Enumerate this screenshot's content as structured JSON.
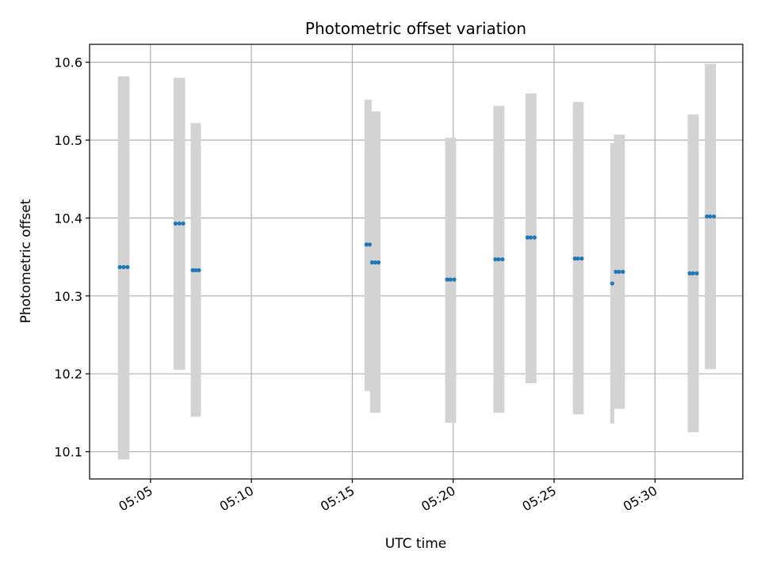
{
  "chart_data": {
    "type": "scatter",
    "title": "Photometric offset variation",
    "xlabel": "UTC time",
    "ylabel": "Photometric offset",
    "x_unit": "minutes after 05:00 UTC",
    "xlim": [
      1.98,
      34.35
    ],
    "ylim": [
      10.065,
      10.623
    ],
    "grid": true,
    "legend": "none",
    "x_ticks": [
      {
        "value": 5,
        "label": "05:05"
      },
      {
        "value": 10,
        "label": "05:10"
      },
      {
        "value": 15,
        "label": "05:15"
      },
      {
        "value": 20,
        "label": "05:20"
      },
      {
        "value": 25,
        "label": "05:25"
      },
      {
        "value": 30,
        "label": "05:30"
      }
    ],
    "y_ticks": [
      {
        "value": 10.1,
        "label": "10.1"
      },
      {
        "value": 10.2,
        "label": "10.2"
      },
      {
        "value": 10.3,
        "label": "10.3"
      },
      {
        "value": 10.4,
        "label": "10.4"
      },
      {
        "value": 10.5,
        "label": "10.5"
      },
      {
        "value": 10.6,
        "label": "10.6"
      }
    ],
    "colors": {
      "marker": "#1f77b4",
      "errorbar": "#d3d3d3",
      "grid": "#b0b0b0"
    },
    "points": [
      {
        "x": 3.48,
        "y": 10.337,
        "ylow": 10.09,
        "yhigh": 10.582
      },
      {
        "x": 3.67,
        "y": 10.337,
        "ylow": 10.09,
        "yhigh": 10.582
      },
      {
        "x": 3.86,
        "y": 10.337,
        "ylow": 10.09,
        "yhigh": 10.582
      },
      {
        "x": 6.24,
        "y": 10.393,
        "ylow": 10.205,
        "yhigh": 10.58
      },
      {
        "x": 6.43,
        "y": 10.393,
        "ylow": 10.205,
        "yhigh": 10.58
      },
      {
        "x": 6.62,
        "y": 10.393,
        "ylow": 10.205,
        "yhigh": 10.58
      },
      {
        "x": 7.09,
        "y": 10.333,
        "ylow": 10.145,
        "yhigh": 10.522
      },
      {
        "x": 7.24,
        "y": 10.333,
        "ylow": 10.145,
        "yhigh": 10.522
      },
      {
        "x": 7.4,
        "y": 10.333,
        "ylow": 10.145,
        "yhigh": 10.522
      },
      {
        "x": 15.7,
        "y": 10.366,
        "ylow": 10.178,
        "yhigh": 10.552
      },
      {
        "x": 15.86,
        "y": 10.366,
        "ylow": 10.178,
        "yhigh": 10.552
      },
      {
        "x": 15.98,
        "y": 10.343,
        "ylow": 10.15,
        "yhigh": 10.537
      },
      {
        "x": 16.14,
        "y": 10.343,
        "ylow": 10.15,
        "yhigh": 10.537
      },
      {
        "x": 16.3,
        "y": 10.343,
        "ylow": 10.15,
        "yhigh": 10.537
      },
      {
        "x": 19.7,
        "y": 10.321,
        "ylow": 10.137,
        "yhigh": 10.503
      },
      {
        "x": 19.86,
        "y": 10.321,
        "ylow": 10.137,
        "yhigh": 10.503
      },
      {
        "x": 20.05,
        "y": 10.321,
        "ylow": 10.137,
        "yhigh": 10.503
      },
      {
        "x": 22.09,
        "y": 10.347,
        "ylow": 10.15,
        "yhigh": 10.544
      },
      {
        "x": 22.25,
        "y": 10.347,
        "ylow": 10.15,
        "yhigh": 10.544
      },
      {
        "x": 22.44,
        "y": 10.347,
        "ylow": 10.15,
        "yhigh": 10.544
      },
      {
        "x": 23.68,
        "y": 10.375,
        "ylow": 10.188,
        "yhigh": 10.56
      },
      {
        "x": 23.84,
        "y": 10.375,
        "ylow": 10.188,
        "yhigh": 10.56
      },
      {
        "x": 24.03,
        "y": 10.375,
        "ylow": 10.188,
        "yhigh": 10.56
      },
      {
        "x": 26.03,
        "y": 10.348,
        "ylow": 10.148,
        "yhigh": 10.549
      },
      {
        "x": 26.18,
        "y": 10.348,
        "ylow": 10.148,
        "yhigh": 10.549
      },
      {
        "x": 26.37,
        "y": 10.348,
        "ylow": 10.148,
        "yhigh": 10.549
      },
      {
        "x": 27.88,
        "y": 10.316,
        "ylow": 10.136,
        "yhigh": 10.496
      },
      {
        "x": 28.06,
        "y": 10.331,
        "ylow": 10.155,
        "yhigh": 10.507
      },
      {
        "x": 28.22,
        "y": 10.331,
        "ylow": 10.155,
        "yhigh": 10.507
      },
      {
        "x": 28.41,
        "y": 10.331,
        "ylow": 10.155,
        "yhigh": 10.507
      },
      {
        "x": 31.72,
        "y": 10.329,
        "ylow": 10.125,
        "yhigh": 10.533
      },
      {
        "x": 31.88,
        "y": 10.329,
        "ylow": 10.125,
        "yhigh": 10.533
      },
      {
        "x": 32.07,
        "y": 10.329,
        "ylow": 10.125,
        "yhigh": 10.533
      },
      {
        "x": 32.57,
        "y": 10.402,
        "ylow": 10.206,
        "yhigh": 10.598
      },
      {
        "x": 32.73,
        "y": 10.402,
        "ylow": 10.206,
        "yhigh": 10.598
      },
      {
        "x": 32.92,
        "y": 10.402,
        "ylow": 10.206,
        "yhigh": 10.598
      }
    ]
  }
}
